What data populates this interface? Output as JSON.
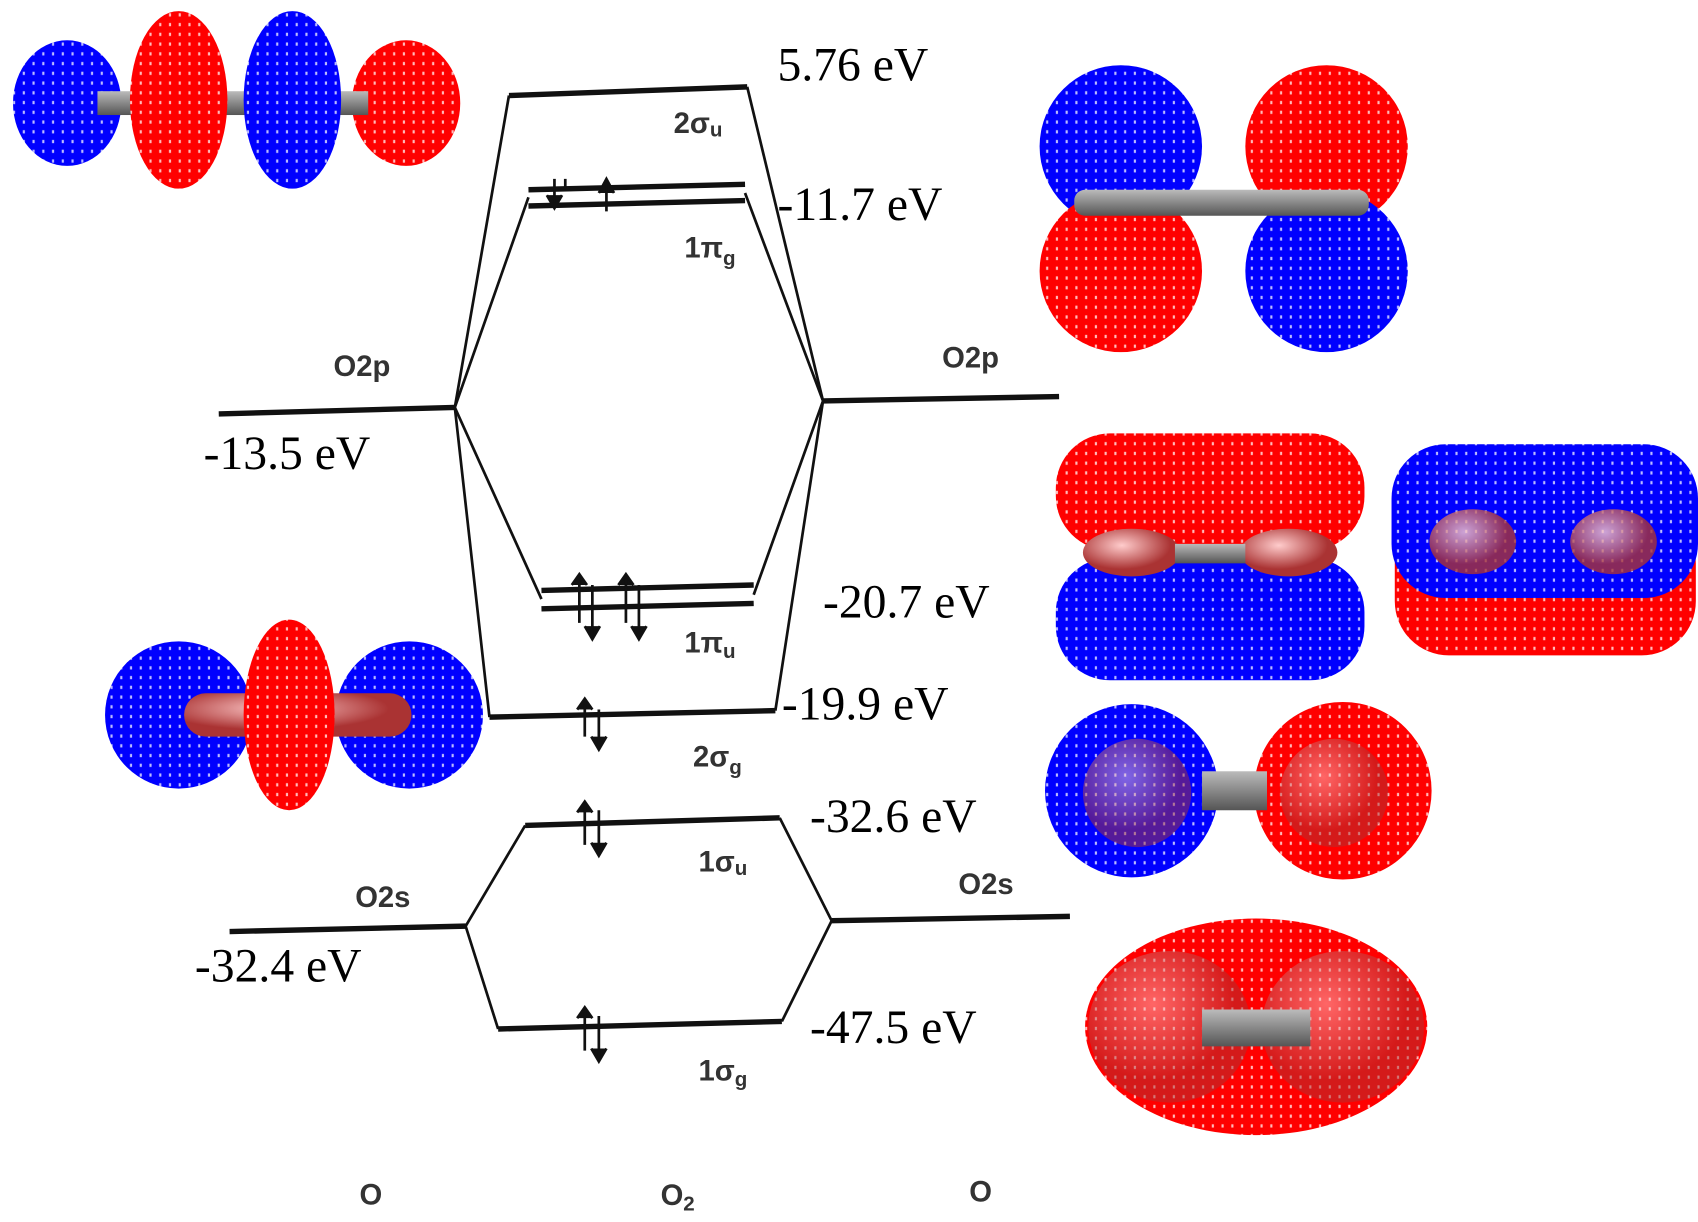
{
  "energies": [
    "5.76 eV",
    "-11.7 eV",
    "-13.5 eV",
    "-20.7 eV",
    "-19.9 eV",
    "-32.6 eV",
    "-32.4 eV",
    "-47.5 eV"
  ],
  "orbitals": [
    {
      "main": "2σ",
      "sub": "u"
    },
    {
      "main": "1π",
      "sub": "g"
    },
    {
      "main": "1π",
      "sub": "u"
    },
    {
      "main": "2σ",
      "sub": "g"
    },
    {
      "main": "1σ",
      "sub": "u"
    },
    {
      "main": "1σ",
      "sub": "g"
    }
  ],
  "atomic_levels": [
    "O2p",
    "O2p",
    "O2s",
    "O2s"
  ],
  "columns": [
    {
      "main": "O"
    },
    {
      "main": "O",
      "sub": "2"
    },
    {
      "main": "O"
    }
  ]
}
